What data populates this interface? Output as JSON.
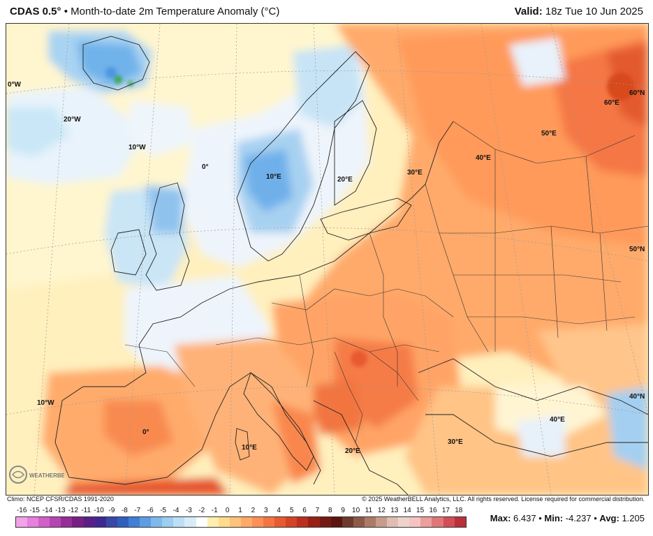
{
  "header": {
    "model": "CDAS 0.5°",
    "separator": "•",
    "product": "Month-to-date 2m Temperature Anomaly (°C)",
    "valid_label": "Valid:",
    "valid_time": "18z Tue 10 Jun 2025"
  },
  "map": {
    "grid_labels": [
      "0°W",
      "20°W",
      "10°W",
      "0°",
      "10°E",
      "20°E",
      "30°E",
      "40°E",
      "50°E",
      "60°E",
      "60°N",
      "50°N",
      "40°N",
      "40°E",
      "30°E",
      "20°E",
      "10°E",
      "0°",
      "10°W"
    ],
    "logo_text": "WEATHERBELL"
  },
  "footer": {
    "climo": "Climo: NCEP CFSR/CDAS 1991-2020",
    "copyright": "© 2025 WeatherBELL Analytics, LLC. All rights reserved. License required for commercial distribution."
  },
  "colorbar": {
    "labels": [
      "-16",
      "-15",
      "-14",
      "-13",
      "-12",
      "-11",
      "-10",
      "-9",
      "-8",
      "-7",
      "-6",
      "-5",
      "-4",
      "-3",
      "-2",
      "-1",
      "0",
      "1",
      "2",
      "3",
      "4",
      "5",
      "6",
      "7",
      "8",
      "9",
      "10",
      "11",
      "12",
      "13",
      "14",
      "15",
      "16",
      "17",
      "18"
    ],
    "colors": [
      "#f7a8f0",
      "#ec7fe4",
      "#d95fd4",
      "#c044bf",
      "#a52ea6",
      "#86208c",
      "#5f1b84",
      "#47238f",
      "#2f3199",
      "#3f50b5",
      "#5b7ecf",
      "#7da7e0",
      "#9cc3ec",
      "#b9d8f3",
      "#d2e7f7",
      "#e6f1fa",
      "#ffffff",
      "#fff6c8",
      "#ffe39a",
      "#ffc98a",
      "#ffb070",
      "#ff9455",
      "#f67a3f",
      "#e9612f",
      "#d44a24",
      "#b8331d",
      "#8f2215",
      "#6d1a10",
      "#8a5a4a",
      "#a67a6a",
      "#c29a8a",
      "#d8b4a8",
      "#ecc7c0",
      "#f6d8d4",
      "#f0bcb6"
    ],
    "bar_colors": [
      "#f3a2ea",
      "#e680dc",
      "#d25fca",
      "#b545b2",
      "#962d98",
      "#781f84",
      "#5a1f87",
      "#3f2894",
      "#3847a8",
      "#2f5fbf",
      "#3f7fd5",
      "#5c9de4",
      "#7fb8ec",
      "#9ccdf2",
      "#bcdff6",
      "#d7ecf9",
      "#ffffff",
      "#ffeeb0",
      "#ffdb8a",
      "#ffc27a",
      "#ffa868",
      "#ff8f54",
      "#f57441",
      "#e85a30",
      "#d44326",
      "#bb2f1e",
      "#972117",
      "#741a12",
      "#5a1510",
      "#6e3a2c",
      "#8d5a48",
      "#ac7a67",
      "#c89c8c",
      "#dfbdb2",
      "#efd3cb",
      "#f5c4c2",
      "#ec9d9c",
      "#e07678",
      "#d24e55",
      "#b93039"
    ]
  },
  "stats": {
    "max_label": "Max:",
    "max_value": "6.437",
    "min_label": "Min:",
    "min_value": "-4.237",
    "avg_label": "Avg:",
    "avg_value": "1.205",
    "dot": "•"
  }
}
